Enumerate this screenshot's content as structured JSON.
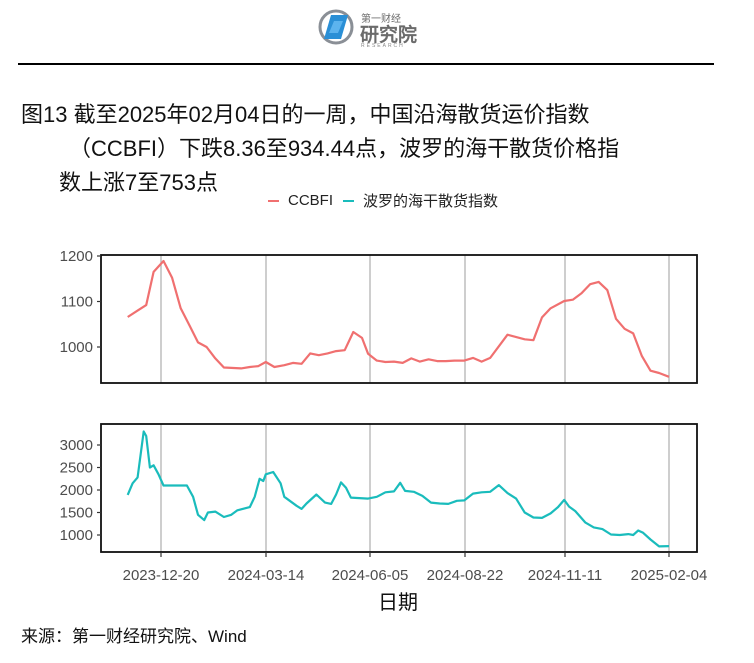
{
  "header": {
    "logo": {
      "small_text": "第一财经",
      "big_text": "研究院",
      "en_text": "RESEARCH",
      "icon": "diamond-in-circle-logo-icon"
    }
  },
  "figure": {
    "title_lines": [
      "图13  截至2025年02月04日的一周，中国沿海散货运价指数",
      "（CCBFI）下跌8.36至934.44点，波罗的海干散货价格指",
      "数上涨7至753点"
    ],
    "x_axis_label": "日期",
    "source": "来源：第一财经研究院、Wind"
  },
  "legend": [
    {
      "label": "CCBFI",
      "color": "#F07070"
    },
    {
      "label": "波罗的海干散货指数",
      "color": "#1ABCBC"
    }
  ],
  "chart_data": {
    "type": "line",
    "title": "截至2025年02月04日的一周，中国沿海散货运价指数（CCBFI）下跌8.36至934.44点，波罗的海干散货价格指数上涨7至753点",
    "xlabel": "日期",
    "x_ticks": [
      "2023-12-20",
      "2024-03-14",
      "2024-06-05",
      "2024-08-22",
      "2024-11-11",
      "2025-02-04"
    ],
    "grid": "vertical lines at x ticks",
    "legend_position": "top",
    "panels": [
      {
        "name": "CCBFI",
        "color": "#F07070",
        "ylim": [
          930,
          1200
        ],
        "y_ticks": [
          1000,
          1100,
          1200
        ],
        "points": [
          [
            "2023-11-23",
            1066
          ],
          [
            "2023-12-01",
            1080
          ],
          [
            "2023-12-08",
            1092
          ],
          [
            "2023-12-14",
            1165
          ],
          [
            "2023-12-22",
            1189
          ],
          [
            "2023-12-29",
            1152
          ],
          [
            "2024-01-05",
            1085
          ],
          [
            "2024-01-12",
            1048
          ],
          [
            "2024-01-19",
            1010
          ],
          [
            "2024-01-26",
            1000
          ],
          [
            "2024-02-02",
            975
          ],
          [
            "2024-02-09",
            955
          ],
          [
            "2024-02-23",
            953
          ],
          [
            "2024-03-01",
            956
          ],
          [
            "2024-03-08",
            958
          ],
          [
            "2024-03-14",
            967
          ],
          [
            "2024-03-21",
            956
          ],
          [
            "2024-03-29",
            960
          ],
          [
            "2024-04-05",
            965
          ],
          [
            "2024-04-12",
            963
          ],
          [
            "2024-04-19",
            986
          ],
          [
            "2024-04-26",
            982
          ],
          [
            "2024-05-03",
            986
          ],
          [
            "2024-05-10",
            991
          ],
          [
            "2024-05-17",
            993
          ],
          [
            "2024-05-24",
            1033
          ],
          [
            "2024-05-31",
            1020
          ],
          [
            "2024-06-05",
            985
          ],
          [
            "2024-06-12",
            970
          ],
          [
            "2024-06-19",
            967
          ],
          [
            "2024-06-26",
            968
          ],
          [
            "2024-07-03",
            965
          ],
          [
            "2024-07-10",
            975
          ],
          [
            "2024-07-17",
            968
          ],
          [
            "2024-07-24",
            973
          ],
          [
            "2024-07-31",
            969
          ],
          [
            "2024-08-07",
            969
          ],
          [
            "2024-08-14",
            970
          ],
          [
            "2024-08-22",
            970
          ],
          [
            "2024-08-29",
            976
          ],
          [
            "2024-09-05",
            968
          ],
          [
            "2024-09-12",
            976
          ],
          [
            "2024-09-26",
            1027
          ],
          [
            "2024-10-10",
            1017
          ],
          [
            "2024-10-17",
            1015
          ],
          [
            "2024-10-24",
            1065
          ],
          [
            "2024-10-31",
            1085
          ],
          [
            "2024-11-11",
            1101
          ],
          [
            "2024-11-18",
            1104
          ],
          [
            "2024-11-25",
            1118
          ],
          [
            "2024-12-02",
            1138
          ],
          [
            "2024-12-09",
            1143
          ],
          [
            "2024-12-16",
            1125
          ],
          [
            "2024-12-23",
            1062
          ],
          [
            "2024-12-30",
            1040
          ],
          [
            "2025-01-06",
            1030
          ],
          [
            "2025-01-13",
            980
          ],
          [
            "2025-01-20",
            948
          ],
          [
            "2025-01-27",
            942.8
          ],
          [
            "2025-02-04",
            934.44
          ]
        ]
      },
      {
        "name": "波罗的海干散货指数",
        "color": "#1ABCBC",
        "ylim": [
          650,
          3450
        ],
        "y_ticks": [
          1000,
          1500,
          2000,
          2500,
          3000
        ],
        "points": [
          [
            "2023-11-23",
            1890
          ],
          [
            "2023-11-27",
            2150
          ],
          [
            "2023-12-01",
            2280
          ],
          [
            "2023-12-04",
            2900
          ],
          [
            "2023-12-06",
            3300
          ],
          [
            "2023-12-08",
            3200
          ],
          [
            "2023-12-11",
            2500
          ],
          [
            "2023-12-14",
            2550
          ],
          [
            "2023-12-18",
            2350
          ],
          [
            "2023-12-22",
            2100
          ],
          [
            "2024-01-05",
            2100
          ],
          [
            "2024-01-10",
            2100
          ],
          [
            "2024-01-15",
            1850
          ],
          [
            "2024-01-19",
            1450
          ],
          [
            "2024-01-24",
            1330
          ],
          [
            "2024-01-27",
            1500
          ],
          [
            "2024-02-02",
            1520
          ],
          [
            "2024-02-09",
            1400
          ],
          [
            "2024-02-15",
            1450
          ],
          [
            "2024-02-20",
            1550
          ],
          [
            "2024-03-01",
            1620
          ],
          [
            "2024-03-05",
            1850
          ],
          [
            "2024-03-09",
            2250
          ],
          [
            "2024-03-12",
            2200
          ],
          [
            "2024-03-14",
            2350
          ],
          [
            "2024-03-20",
            2400
          ],
          [
            "2024-03-26",
            2150
          ],
          [
            "2024-03-29",
            1850
          ],
          [
            "2024-04-08",
            1650
          ],
          [
            "2024-04-12",
            1580
          ],
          [
            "2024-04-16",
            1700
          ],
          [
            "2024-04-24",
            1900
          ],
          [
            "2024-05-01",
            1720
          ],
          [
            "2024-05-06",
            1690
          ],
          [
            "2024-05-10",
            1900
          ],
          [
            "2024-05-14",
            2170
          ],
          [
            "2024-05-18",
            2050
          ],
          [
            "2024-05-22",
            1830
          ],
          [
            "2024-06-05",
            1810
          ],
          [
            "2024-06-12",
            1850
          ],
          [
            "2024-06-19",
            1950
          ],
          [
            "2024-06-26",
            1970
          ],
          [
            "2024-07-01",
            2160
          ],
          [
            "2024-07-05",
            1980
          ],
          [
            "2024-07-12",
            1960
          ],
          [
            "2024-07-19",
            1870
          ],
          [
            "2024-07-26",
            1720
          ],
          [
            "2024-08-02",
            1700
          ],
          [
            "2024-08-09",
            1690
          ],
          [
            "2024-08-16",
            1760
          ],
          [
            "2024-08-22",
            1770
          ],
          [
            "2024-08-29",
            1920
          ],
          [
            "2024-09-05",
            1950
          ],
          [
            "2024-09-12",
            1960
          ],
          [
            "2024-09-19",
            2110
          ],
          [
            "2024-09-26",
            1930
          ],
          [
            "2024-10-03",
            1810
          ],
          [
            "2024-10-10",
            1500
          ],
          [
            "2024-10-17",
            1390
          ],
          [
            "2024-10-24",
            1380
          ],
          [
            "2024-10-31",
            1480
          ],
          [
            "2024-11-06",
            1620
          ],
          [
            "2024-11-11",
            1780
          ],
          [
            "2024-11-15",
            1630
          ],
          [
            "2024-11-20",
            1530
          ],
          [
            "2024-11-28",
            1280
          ],
          [
            "2024-12-05",
            1170
          ],
          [
            "2024-12-12",
            1130
          ],
          [
            "2024-12-19",
            1010
          ],
          [
            "2024-12-26",
            1000
          ],
          [
            "2025-01-02",
            1020
          ],
          [
            "2025-01-06",
            1000
          ],
          [
            "2025-01-10",
            1100
          ],
          [
            "2025-01-14",
            1050
          ],
          [
            "2025-01-20",
            900
          ],
          [
            "2025-01-27",
            746
          ],
          [
            "2025-02-04",
            753
          ]
        ]
      }
    ]
  }
}
